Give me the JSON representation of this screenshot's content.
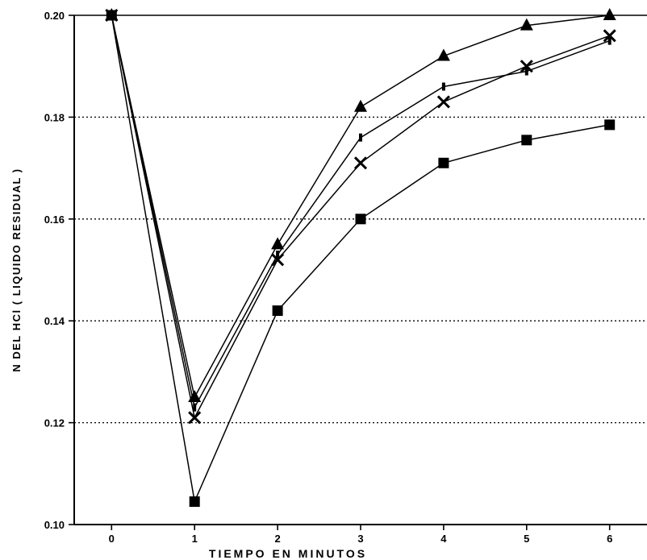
{
  "chart_data": {
    "type": "line",
    "title": "",
    "xlabel": "TIEMPO EN MINUTOS",
    "ylabel": "N DEL HCl ( LIQUIDO RESIDUAL )",
    "x": [
      0,
      1,
      2,
      3,
      4,
      5,
      6
    ],
    "xlim": [
      -0.45,
      6.45
    ],
    "ylim": [
      0.1,
      0.2
    ],
    "x_ticks": [
      "0",
      "1",
      "2",
      "3",
      "4",
      "5",
      "6"
    ],
    "y_ticks": [
      "0.10",
      "0.12",
      "0.14",
      "0.16",
      "0.18",
      "0.20"
    ],
    "grid": "horizontal-dotted",
    "legend": "none",
    "series": [
      {
        "marker": "triangle",
        "values": [
          0.2,
          0.125,
          0.155,
          0.182,
          0.192,
          0.198,
          0.2
        ]
      },
      {
        "marker": "bar",
        "values": [
          0.2,
          0.123,
          0.153,
          0.176,
          0.186,
          0.189,
          0.195
        ]
      },
      {
        "marker": "x",
        "values": [
          0.2,
          0.121,
          0.152,
          0.171,
          0.183,
          0.19,
          0.196
        ]
      },
      {
        "marker": "square",
        "values": [
          0.2,
          0.1045,
          0.142,
          0.16,
          0.171,
          0.1755,
          0.1785
        ]
      }
    ],
    "colors": {
      "line": "#000000",
      "grid": "#000000",
      "background": "#ffffff"
    }
  }
}
